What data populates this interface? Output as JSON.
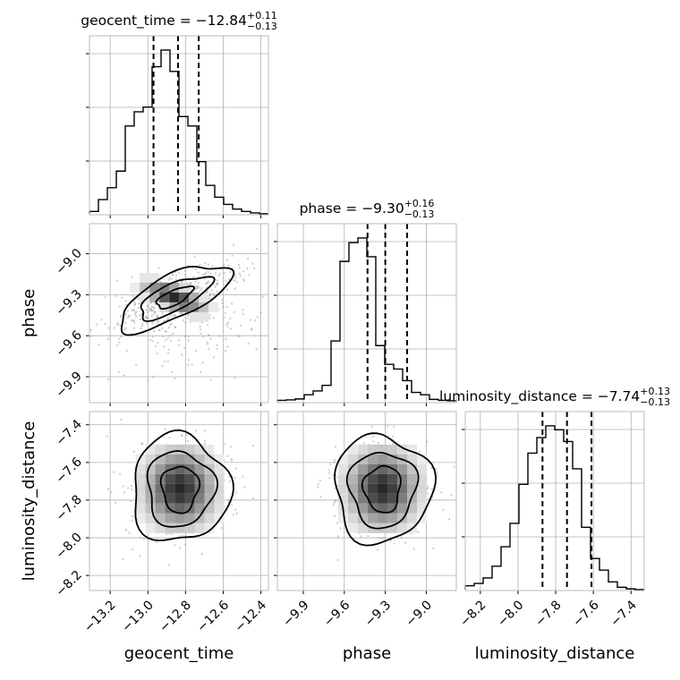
{
  "chart_data": {
    "type": "corner",
    "grid": true,
    "parameters": [
      {
        "name": "geocent_time",
        "median": -12.84,
        "err_plus": "+0.11",
        "err_minus": "−0.13",
        "title_main": "geocent_time = −12.84",
        "quantiles": [
          -12.97,
          -12.84,
          -12.73
        ],
        "range": [
          -13.31,
          -12.36
        ],
        "ticks": [
          -13.2,
          -13.0,
          -12.8,
          -12.6,
          -12.4
        ],
        "tick_labels": [
          "−13.2",
          "−13.0",
          "−12.8",
          "−12.6",
          "−12.4"
        ]
      },
      {
        "name": "phase",
        "median": -9.3,
        "err_plus": "+0.16",
        "err_minus": "−0.13",
        "title_main": "phase = −9.30",
        "quantiles": [
          -9.43,
          -9.3,
          -9.14
        ],
        "range": [
          -10.09,
          -8.78
        ],
        "ticks": [
          -9.9,
          -9.6,
          -9.3,
          -9.0
        ],
        "tick_labels": [
          "−9.9",
          "−9.6",
          "−9.3",
          "−9.0"
        ]
      },
      {
        "name": "luminosity_distance",
        "median": -7.74,
        "err_plus": "+0.13",
        "err_minus": "−0.13",
        "title_main": "luminosity_distance = −7.74",
        "quantiles": [
          -7.87,
          -7.74,
          -7.61
        ],
        "range": [
          -8.28,
          -7.33
        ],
        "ticks": [
          -8.2,
          -8.0,
          -7.8,
          -7.6,
          -7.4
        ],
        "tick_labels": [
          "−8.2",
          "−8.0",
          "−7.8",
          "−7.6",
          "−7.4"
        ]
      }
    ],
    "histograms": [
      {
        "param": "geocent_time",
        "edges_start": -13.31,
        "bin_width": 0.0475,
        "counts": [
          0.5,
          3,
          5.5,
          9,
          18.5,
          21.5,
          22.5,
          31,
          34.5,
          30,
          20.5,
          18.5,
          11,
          6,
          3.5,
          2,
          1,
          0.5,
          0.2,
          0
        ]
      },
      {
        "param": "phase",
        "edges_start": -10.09,
        "bin_width": 0.0655,
        "counts": [
          0.3,
          0.4,
          0.6,
          1.5,
          2.3,
          3.5,
          13,
          30,
          34,
          35,
          31,
          12,
          8,
          7,
          4.5,
          2,
          1.5,
          0.5,
          0.3,
          0.2
        ]
      },
      {
        "param": "luminosity_distance",
        "edges_start": -8.28,
        "bin_width": 0.0475,
        "counts": [
          0.5,
          0.8,
          1.5,
          3,
          5.5,
          8.5,
          13.5,
          17.5,
          19.5,
          21,
          20.5,
          19,
          15.5,
          8,
          4,
          2.5,
          1,
          0.3,
          0.1,
          0
        ]
      }
    ],
    "pairs": [
      {
        "x": "geocent_time",
        "y": "phase",
        "center": [
          -12.86,
          -9.32
        ]
      },
      {
        "x": "geocent_time",
        "y": "luminosity_distance",
        "center": [
          -12.83,
          -7.74
        ]
      },
      {
        "x": "phase",
        "y": "luminosity_distance",
        "center": [
          -9.32,
          -7.74
        ]
      }
    ]
  }
}
